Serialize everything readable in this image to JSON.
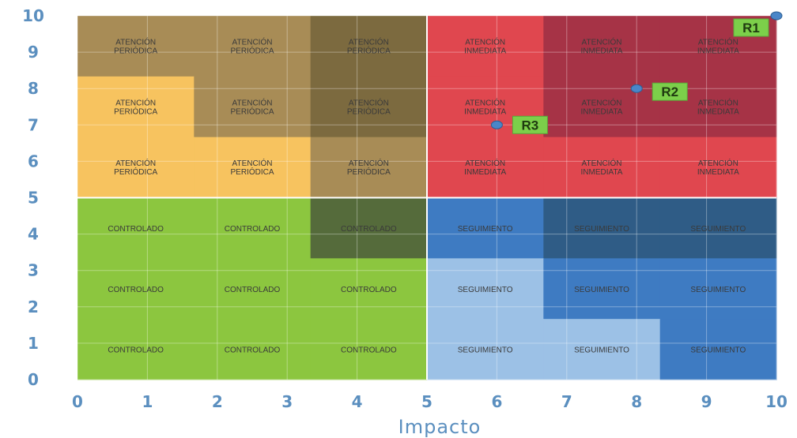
{
  "chart_data": {
    "type": "scatter",
    "title": "",
    "xlabel": "Impacto",
    "ylabel": "",
    "xlim": [
      0,
      10
    ],
    "ylim": [
      0,
      10
    ],
    "xticks": [
      "0",
      "1",
      "2",
      "3",
      "4",
      "5",
      "6",
      "7",
      "8",
      "9",
      "10"
    ],
    "yticks": [
      "0",
      "1",
      "2",
      "3",
      "4",
      "5",
      "6",
      "7",
      "8",
      "9",
      "10"
    ],
    "grid": true,
    "colors": {
      "tan": "#a88c56",
      "olive": "#7c6a3f",
      "yellow": "#f7c35f",
      "red": "#e0474f",
      "darkred": "#a63346",
      "green": "#8cc63f",
      "darkgreen": "#556b3b",
      "blue": "#3e7bc2",
      "darkblue": "#2f5c86",
      "lightblue": "#9cc1e6",
      "label_bg": "#7ccf4a",
      "point": "#4a86c8"
    },
    "cells": [
      {
        "row": 0,
        "col": 0,
        "label": "ATENCIÓN PERIÓDICA",
        "color": "tan"
      },
      {
        "row": 0,
        "col": 1,
        "label": "ATENCIÓN PERIÓDICA",
        "color": "tan"
      },
      {
        "row": 0,
        "col": 2,
        "label": "ATENCIÓN PERIÓDICA",
        "color": "olive"
      },
      {
        "row": 0,
        "col": 3,
        "label": "ATENCIÓN INMEDIATA",
        "color": "red"
      },
      {
        "row": 0,
        "col": 4,
        "label": "ATENCIÓN INMEDIATA",
        "color": "darkred"
      },
      {
        "row": 0,
        "col": 5,
        "label": "ATENCIÓN INMEDIATA",
        "color": "darkred"
      },
      {
        "row": 1,
        "col": 0,
        "label": "ATENCIÓN PERIÓDICA",
        "color": "yellow"
      },
      {
        "row": 1,
        "col": 1,
        "label": "ATENCIÓN PERIÓDICA",
        "color": "tan"
      },
      {
        "row": 1,
        "col": 2,
        "label": "ATENCIÓN PERIÓDICA",
        "color": "olive"
      },
      {
        "row": 1,
        "col": 3,
        "label": "ATENCIÓN INMEDIATA",
        "color": "red"
      },
      {
        "row": 1,
        "col": 4,
        "label": "ATENCIÓN INMEDIATA",
        "color": "darkred"
      },
      {
        "row": 1,
        "col": 5,
        "label": "ATENCIÓN INMEDIATA",
        "color": "darkred"
      },
      {
        "row": 2,
        "col": 0,
        "label": "ATENCIÓN PERIÓDICA",
        "color": "yellow"
      },
      {
        "row": 2,
        "col": 1,
        "label": "ATENCIÓN PERIÓDICA",
        "color": "yellow"
      },
      {
        "row": 2,
        "col": 2,
        "label": "ATENCIÓN PERIÓDICA",
        "color": "tan"
      },
      {
        "row": 2,
        "col": 3,
        "label": "ATENCIÓN INMEDIATA",
        "color": "red"
      },
      {
        "row": 2,
        "col": 4,
        "label": "ATENCIÓN INMEDIATA",
        "color": "red"
      },
      {
        "row": 2,
        "col": 5,
        "label": "ATENCIÓN INMEDIATA",
        "color": "red"
      },
      {
        "row": 3,
        "col": 0,
        "label": "CONTROLADO",
        "color": "green"
      },
      {
        "row": 3,
        "col": 1,
        "label": "CONTROLADO",
        "color": "green"
      },
      {
        "row": 3,
        "col": 2,
        "label": "CONTROLADO",
        "color": "darkgreen"
      },
      {
        "row": 3,
        "col": 3,
        "label": "SEGUIMIENTO",
        "color": "blue"
      },
      {
        "row": 3,
        "col": 4,
        "label": "SEGUIMIENTO",
        "color": "darkblue"
      },
      {
        "row": 3,
        "col": 5,
        "label": "SEGUIMIENTO",
        "color": "darkblue"
      },
      {
        "row": 4,
        "col": 0,
        "label": "CONTROLADO",
        "color": "green"
      },
      {
        "row": 4,
        "col": 1,
        "label": "CONTROLADO",
        "color": "green"
      },
      {
        "row": 4,
        "col": 2,
        "label": "CONTROLADO",
        "color": "green"
      },
      {
        "row": 4,
        "col": 3,
        "label": "SEGUIMIENTO",
        "color": "lightblue"
      },
      {
        "row": 4,
        "col": 4,
        "label": "SEGUIMIENTO",
        "color": "blue"
      },
      {
        "row": 4,
        "col": 5,
        "label": "SEGUIMIENTO",
        "color": "blue"
      },
      {
        "row": 5,
        "col": 0,
        "label": "CONTROLADO",
        "color": "green"
      },
      {
        "row": 5,
        "col": 1,
        "label": "CONTROLADO",
        "color": "green"
      },
      {
        "row": 5,
        "col": 2,
        "label": "CONTROLADO",
        "color": "green"
      },
      {
        "row": 5,
        "col": 3,
        "label": "SEGUIMIENTO",
        "color": "lightblue"
      },
      {
        "row": 5,
        "col": 4,
        "label": "SEGUIMIENTO",
        "color": "lightblue"
      },
      {
        "row": 5,
        "col": 5,
        "label": "SEGUIMIENTO",
        "color": "blue"
      }
    ],
    "points": [
      {
        "name": "R1",
        "x": 10,
        "y": 10
      },
      {
        "name": "R2",
        "x": 8,
        "y": 8
      },
      {
        "name": "R3",
        "x": 6,
        "y": 7
      }
    ]
  }
}
